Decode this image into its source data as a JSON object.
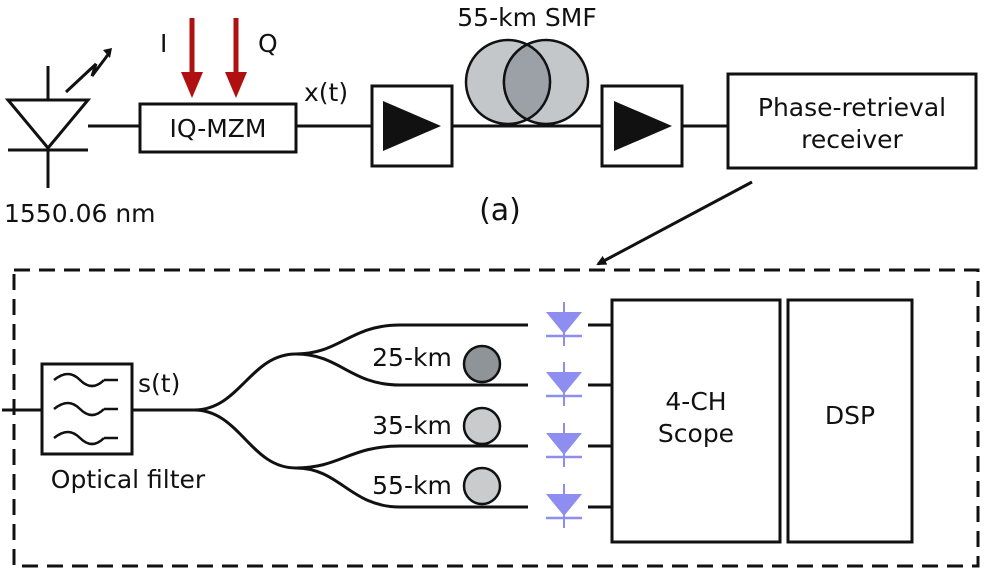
{
  "colors": {
    "line": "#111111",
    "arrow_iq": "#b01010",
    "fiber_fill": "#c4c7ca",
    "fiber_overlap": "#9ba1a6",
    "spool_dark": "#8f9498",
    "spool_light": "#c9cbcd",
    "photodiode": "#8e8ef0"
  },
  "transmitter": {
    "laser_wavelength": "1550.06 nm",
    "i_label": "I",
    "q_label": "Q",
    "modulator_label": "IQ-MZM",
    "signal_label": "x(t)",
    "fiber_label": "55-km SMF",
    "receiver_line1": "Phase-retrieval",
    "receiver_line2": "receiver",
    "panel_label": "(a)"
  },
  "receiver_detail": {
    "filter_label": "Optical filter",
    "filter_signal_label": "s(t)",
    "spools": [
      {
        "label": "25-km",
        "shade": "dark"
      },
      {
        "label": "35-km",
        "shade": "light"
      },
      {
        "label": "55-km",
        "shade": "light"
      }
    ],
    "scope_line1": "4-CH",
    "scope_line2": "Scope",
    "dsp_label": "DSP"
  }
}
